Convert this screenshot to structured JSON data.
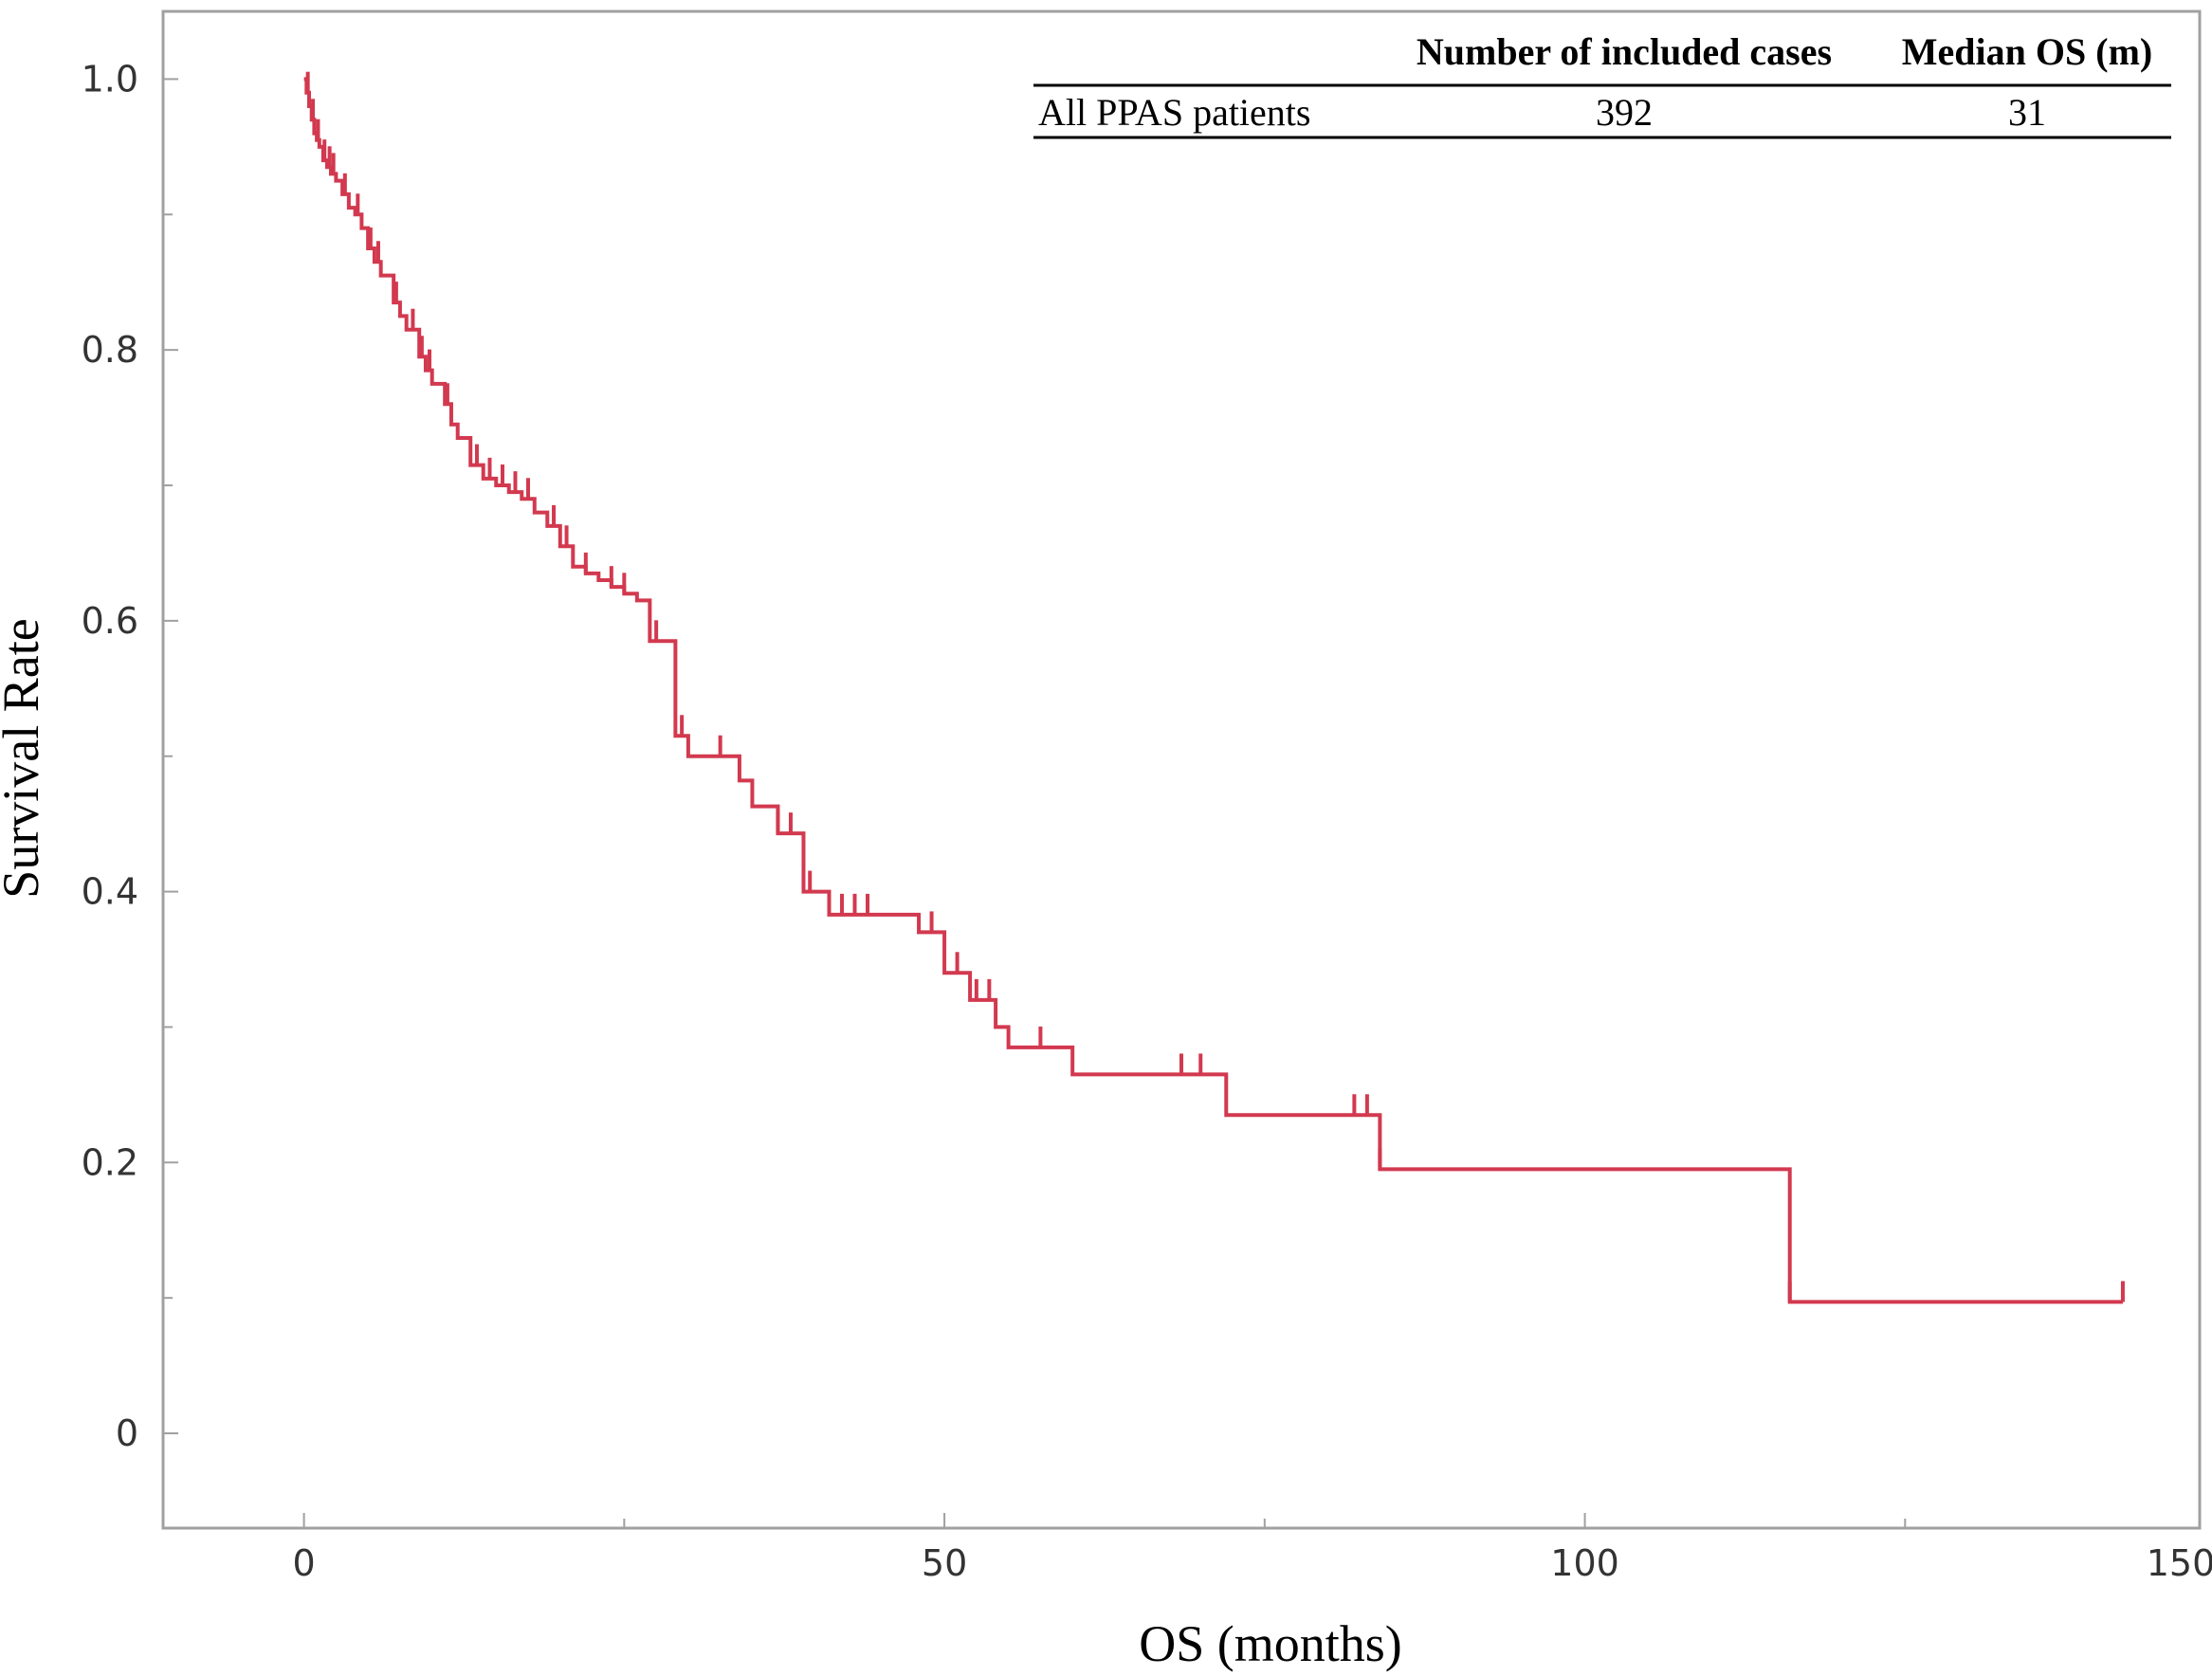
{
  "chart_data": {
    "type": "line",
    "title": "",
    "xlabel": "OS (months)",
    "ylabel": "Survival Rate",
    "xlim": [
      -11,
      148
    ],
    "ylim": [
      -0.07,
      1.05
    ],
    "x_ticks": [
      0,
      50,
      100,
      150
    ],
    "x_tick_labels": [
      "0",
      "50",
      "100",
      "150"
    ],
    "y_ticks": [
      0,
      0.2,
      0.4,
      0.6,
      0.8,
      1.0
    ],
    "y_tick_labels": [
      "0",
      "0.2",
      "0.4",
      "0.6",
      "0.8",
      "1.0"
    ],
    "grid": false,
    "line_color": "#d2394f",
    "series": [
      {
        "name": "All PPAS patients",
        "x": [
          0,
          0.2,
          0.4,
          0.6,
          0.8,
          1.0,
          1.2,
          1.5,
          1.8,
          2.1,
          2.5,
          3,
          3.5,
          4,
          4.5,
          5,
          5.5,
          6,
          7,
          7.5,
          8,
          9,
          9.5,
          10,
          11,
          11.5,
          12,
          13,
          14,
          15,
          16,
          17,
          18,
          19,
          20,
          21,
          22,
          23,
          24,
          25,
          26,
          27,
          28,
          29,
          30,
          31,
          32,
          34,
          35,
          37,
          39,
          41,
          43,
          47,
          48,
          50,
          52,
          54,
          55,
          56,
          60,
          72,
          84,
          116,
          142
        ],
        "y": [
          1.0,
          0.99,
          0.98,
          0.97,
          0.96,
          0.955,
          0.95,
          0.94,
          0.935,
          0.93,
          0.925,
          0.915,
          0.905,
          0.9,
          0.89,
          0.875,
          0.865,
          0.855,
          0.835,
          0.825,
          0.815,
          0.795,
          0.785,
          0.775,
          0.76,
          0.745,
          0.735,
          0.715,
          0.705,
          0.7,
          0.695,
          0.69,
          0.68,
          0.67,
          0.655,
          0.64,
          0.635,
          0.63,
          0.625,
          0.62,
          0.615,
          0.585,
          0.585,
          0.515,
          0.5,
          0.5,
          0.5,
          0.482,
          0.463,
          0.443,
          0.4,
          0.383,
          0.383,
          0.383,
          0.37,
          0.34,
          0.32,
          0.3,
          0.285,
          0.285,
          0.265,
          0.235,
          0.195,
          0.097,
          0.097
        ],
        "censored_x": [
          0.3,
          0.7,
          1.1,
          1.6,
          2.0,
          2.3,
          3.2,
          4.2,
          5.2,
          5.8,
          7.2,
          8.5,
          9.2,
          9.8,
          11.2,
          13.5,
          14.5,
          15.5,
          16.5,
          17.5,
          19.5,
          20.5,
          22,
          24,
          25,
          27.5,
          29.5,
          32.5,
          37,
          38,
          39.5,
          42,
          43,
          44,
          49,
          51,
          52.5,
          53.5,
          57.5,
          68.5,
          70,
          82,
          83,
          84,
          116,
          142
        ]
      }
    ]
  },
  "table": {
    "headers": [
      "",
      "Number of included cases",
      "Median OS (m)"
    ],
    "rows": [
      [
        "All PPAS patients",
        "392",
        "31"
      ]
    ]
  }
}
